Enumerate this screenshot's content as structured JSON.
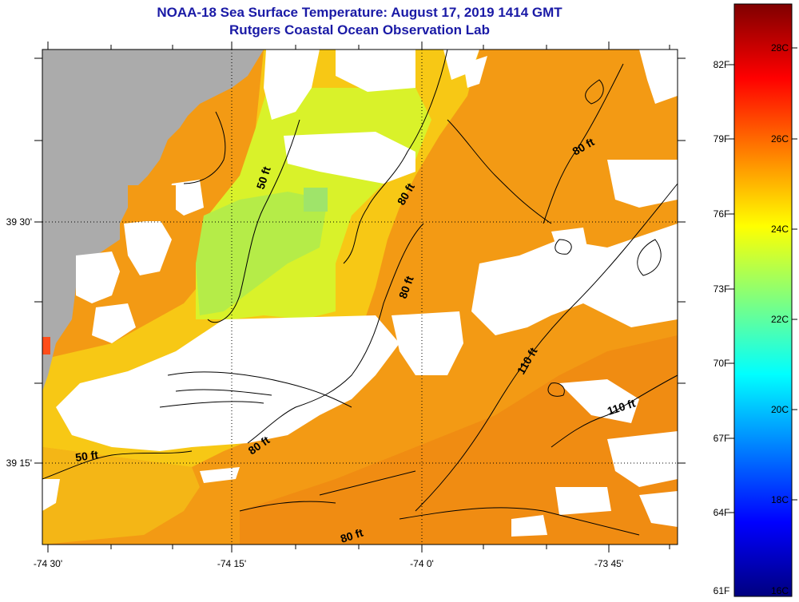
{
  "title": "NOAA-18 Sea Surface Temperature:  August 17, 2019 1414 GMT",
  "subtitle": "Rutgers Coastal Ocean Observation Lab",
  "axes": {
    "x_ticks": [
      {
        "label": "-74 30'",
        "lon": -74.5
      },
      {
        "label": "-74 15'",
        "lon": -74.25
      },
      {
        "label": "-74 0'",
        "lon": -74.0
      },
      {
        "label": "-73 45'",
        "lon": -73.75
      }
    ],
    "y_ticks": [
      {
        "label": "39 30'",
        "lat": 39.5
      },
      {
        "label": "39 15'",
        "lat": 39.25
      }
    ]
  },
  "colorbar": {
    "min_f": 61,
    "max_f": 84,
    "fahrenheit_labels": [
      "82F",
      "79F",
      "76F",
      "73F",
      "70F",
      "67F",
      "64F",
      "61F"
    ],
    "celsius_labels": [
      "28C",
      "26C",
      "24C",
      "22C",
      "20C",
      "18C",
      "16C"
    ],
    "colors": [
      "#00007f",
      "#0000ff",
      "#007fff",
      "#00ffff",
      "#7fff7f",
      "#ffff00",
      "#ff7f00",
      "#ff0000",
      "#7f0000"
    ]
  },
  "contour_labels": [
    "50 ft",
    "50 ft",
    "80 ft",
    "80 ft",
    "80 ft",
    "80 ft",
    "80 ft",
    "110 ft",
    "110 ft"
  ],
  "colors": {
    "title": "#1a1aa6",
    "land": "#ababab",
    "cloud": "#ffffff",
    "sst_warm": "#f39a14",
    "sst_mid": "#f7c815",
    "sst_cool": "#d9f22a",
    "sst_cooler": "#b5ec48"
  }
}
